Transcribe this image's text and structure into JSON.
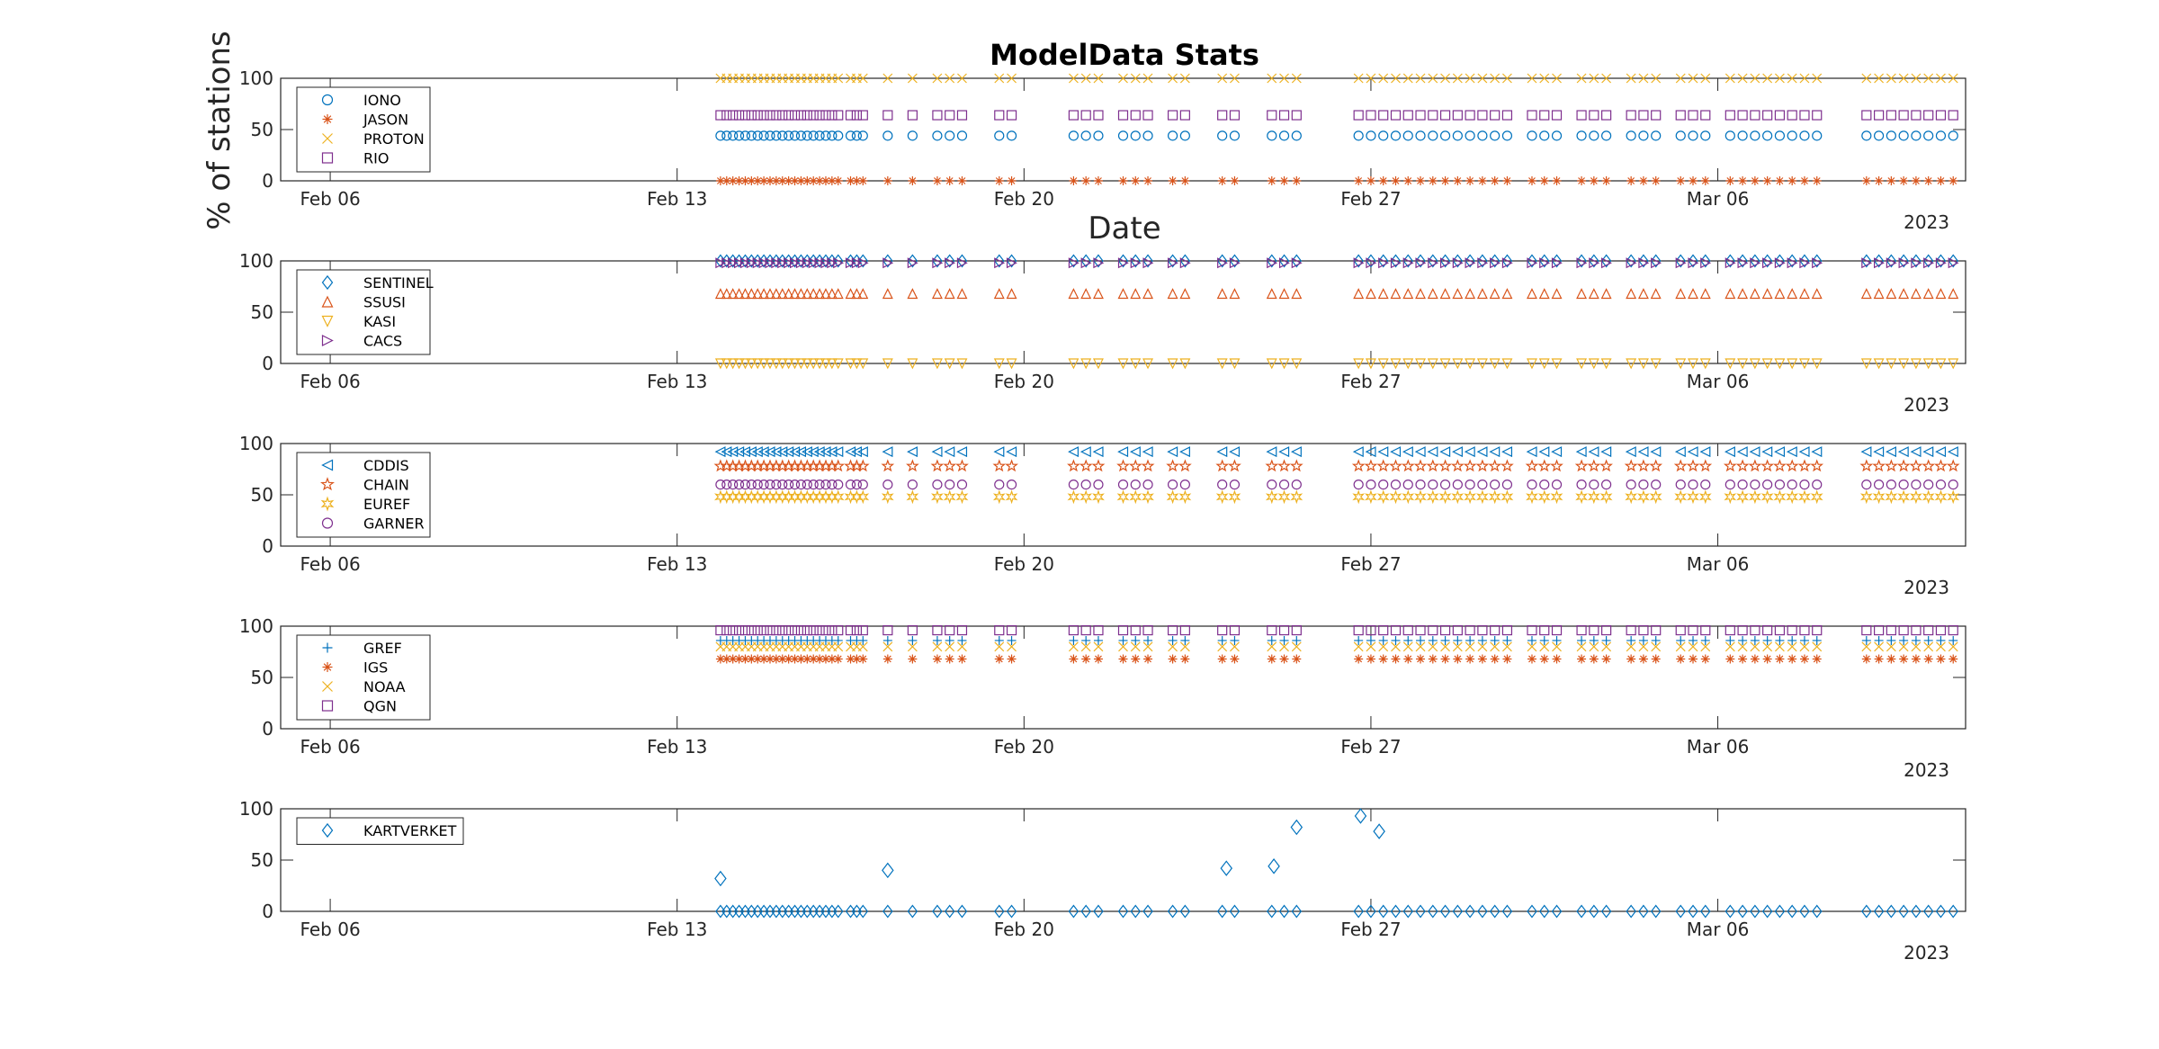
{
  "chart_data": [
    {
      "type": "scatter",
      "title": "ModelData Stats",
      "ylabel": "% of stations",
      "xlabel": "Date",
      "xlim": [
        "2023-02-05",
        "2023-03-11"
      ],
      "ylim": [
        0,
        100
      ],
      "yticks": [
        0,
        50,
        100
      ],
      "xticks": [
        {
          "date": "2023-02-06",
          "label": "Feb 06"
        },
        {
          "date": "2023-02-13",
          "label": "Feb 13"
        },
        {
          "date": "2023-02-20",
          "label": "Feb 20"
        },
        {
          "date": "2023-02-27",
          "label": "Feb 27"
        },
        {
          "date": "2023-03-06",
          "label": "Mar 06"
        }
      ],
      "year_label": "2023",
      "legend_position": "top-left",
      "series": [
        {
          "name": "IONO",
          "marker": "circle",
          "color": "#0072BD",
          "level": 44
        },
        {
          "name": "JASON",
          "marker": "asterisk",
          "color": "#D95319",
          "level": 0
        },
        {
          "name": "PROTON",
          "marker": "x",
          "color": "#EDB120",
          "level": 100
        },
        {
          "name": "RIO",
          "marker": "square",
          "color": "#7E2F8E",
          "level": 64
        }
      ]
    },
    {
      "type": "scatter",
      "xlim": [
        "2023-02-05",
        "2023-03-11"
      ],
      "ylim": [
        0,
        100
      ],
      "yticks": [
        0,
        50,
        100
      ],
      "xticks": [
        {
          "date": "2023-02-06",
          "label": "Feb 06"
        },
        {
          "date": "2023-02-13",
          "label": "Feb 13"
        },
        {
          "date": "2023-02-20",
          "label": "Feb 20"
        },
        {
          "date": "2023-02-27",
          "label": "Feb 27"
        },
        {
          "date": "2023-03-06",
          "label": "Mar 06"
        }
      ],
      "year_label": "2023",
      "legend_position": "top-left",
      "series": [
        {
          "name": "SENTINEL",
          "marker": "diamond",
          "color": "#0072BD",
          "level": 100
        },
        {
          "name": "SSUSI",
          "marker": "triangle-up",
          "color": "#D95319",
          "level": 68
        },
        {
          "name": "KASI",
          "marker": "triangle-down",
          "color": "#EDB120",
          "level": 0
        },
        {
          "name": "CACS",
          "marker": "triangle-right",
          "color": "#7E2F8E",
          "level": 98
        }
      ]
    },
    {
      "type": "scatter",
      "xlim": [
        "2023-02-05",
        "2023-03-11"
      ],
      "ylim": [
        0,
        100
      ],
      "yticks": [
        0,
        50,
        100
      ],
      "xticks": [
        {
          "date": "2023-02-06",
          "label": "Feb 06"
        },
        {
          "date": "2023-02-13",
          "label": "Feb 13"
        },
        {
          "date": "2023-02-20",
          "label": "Feb 20"
        },
        {
          "date": "2023-02-27",
          "label": "Feb 27"
        },
        {
          "date": "2023-03-06",
          "label": "Mar 06"
        }
      ],
      "year_label": "2023",
      "legend_position": "top-left",
      "series": [
        {
          "name": "CDDIS",
          "marker": "triangle-left",
          "color": "#0072BD",
          "level": 92
        },
        {
          "name": "CHAIN",
          "marker": "pentagram",
          "color": "#D95319",
          "level": 78
        },
        {
          "name": "EUREF",
          "marker": "hexagram",
          "color": "#EDB120",
          "level": 48
        },
        {
          "name": "GARNER",
          "marker": "circle",
          "color": "#7E2F8E",
          "level": 60
        }
      ]
    },
    {
      "type": "scatter",
      "xlim": [
        "2023-02-05",
        "2023-03-11"
      ],
      "ylim": [
        0,
        100
      ],
      "yticks": [
        0,
        50,
        100
      ],
      "xticks": [
        {
          "date": "2023-02-06",
          "label": "Feb 06"
        },
        {
          "date": "2023-02-13",
          "label": "Feb 13"
        },
        {
          "date": "2023-02-20",
          "label": "Feb 20"
        },
        {
          "date": "2023-02-27",
          "label": "Feb 27"
        },
        {
          "date": "2023-03-06",
          "label": "Mar 06"
        }
      ],
      "year_label": "2023",
      "legend_position": "top-left",
      "series": [
        {
          "name": "GREF",
          "marker": "plus",
          "color": "#0072BD",
          "level": 86
        },
        {
          "name": "IGS",
          "marker": "asterisk",
          "color": "#D95319",
          "level": 68
        },
        {
          "name": "NOAA",
          "marker": "x",
          "color": "#EDB120",
          "level": 80
        },
        {
          "name": "QGN",
          "marker": "square",
          "color": "#7E2F8E",
          "level": 96
        }
      ]
    },
    {
      "type": "scatter",
      "xlim": [
        "2023-02-05",
        "2023-03-11"
      ],
      "ylim": [
        0,
        100
      ],
      "yticks": [
        0,
        50,
        100
      ],
      "xticks": [
        {
          "date": "2023-02-06",
          "label": "Feb 06"
        },
        {
          "date": "2023-02-13",
          "label": "Feb 13"
        },
        {
          "date": "2023-02-20",
          "label": "Feb 20"
        },
        {
          "date": "2023-02-27",
          "label": "Feb 27"
        },
        {
          "date": "2023-03-06",
          "label": "Mar 06"
        }
      ],
      "year_label": "2023",
      "legend_position": "top-left",
      "series": [
        {
          "name": "KARTVERKET",
          "marker": "diamond",
          "color": "#0072BD",
          "level": 0,
          "extra_points": [
            [
              "2023-02-13 21:00",
              32
            ],
            [
              "2023-02-17 06:00",
              40
            ],
            [
              "2023-02-24 02:00",
              42
            ],
            [
              "2023-02-25 01:00",
              44
            ],
            [
              "2023-02-25 12:00",
              82
            ],
            [
              "2023-02-26 19:00",
              93
            ],
            [
              "2023-02-27 04:00",
              78
            ]
          ]
        }
      ]
    }
  ],
  "active_dates": [
    "2023-02-13 21:00",
    "2023-02-14 00:00",
    "2023-02-14 03:00",
    "2023-02-14 06:00",
    "2023-02-14 09:00",
    "2023-02-14 12:00",
    "2023-02-14 15:00",
    "2023-02-14 18:00",
    "2023-02-14 21:00",
    "2023-02-15 00:00",
    "2023-02-15 03:00",
    "2023-02-15 06:00",
    "2023-02-15 09:00",
    "2023-02-15 12:00",
    "2023-02-15 15:00",
    "2023-02-15 18:00",
    "2023-02-15 21:00",
    "2023-02-16 00:00",
    "2023-02-16 03:00",
    "2023-02-16 06:00",
    "2023-02-16 12:00",
    "2023-02-16 15:00",
    "2023-02-16 18:00",
    "2023-02-17 06:00",
    "2023-02-17 18:00",
    "2023-02-18 06:00",
    "2023-02-18 12:00",
    "2023-02-18 18:00",
    "2023-02-19 12:00",
    "2023-02-19 18:00",
    "2023-02-21 00:00",
    "2023-02-21 06:00",
    "2023-02-21 12:00",
    "2023-02-22 00:00",
    "2023-02-22 06:00",
    "2023-02-22 12:00",
    "2023-02-23 00:00",
    "2023-02-23 06:00",
    "2023-02-24 00:00",
    "2023-02-24 06:00",
    "2023-02-25 00:00",
    "2023-02-25 06:00",
    "2023-02-25 12:00",
    "2023-02-26 18:00",
    "2023-02-27 00:00",
    "2023-02-27 06:00",
    "2023-02-27 12:00",
    "2023-02-27 18:00",
    "2023-02-28 00:00",
    "2023-02-28 06:00",
    "2023-02-28 12:00",
    "2023-02-28 18:00",
    "2023-03-01 00:00",
    "2023-03-01 06:00",
    "2023-03-01 12:00",
    "2023-03-01 18:00",
    "2023-03-02 06:00",
    "2023-03-02 12:00",
    "2023-03-02 18:00",
    "2023-03-03 06:00",
    "2023-03-03 12:00",
    "2023-03-03 18:00",
    "2023-03-04 06:00",
    "2023-03-04 12:00",
    "2023-03-04 18:00",
    "2023-03-05 06:00",
    "2023-03-05 12:00",
    "2023-03-05 18:00",
    "2023-03-06 06:00",
    "2023-03-06 12:00",
    "2023-03-06 18:00",
    "2023-03-07 00:00",
    "2023-03-07 06:00",
    "2023-03-07 12:00",
    "2023-03-07 18:00",
    "2023-03-08 00:00",
    "2023-03-09 00:00",
    "2023-03-09 06:00",
    "2023-03-09 12:00",
    "2023-03-09 18:00",
    "2023-03-10 00:00",
    "2023-03-10 06:00",
    "2023-03-10 12:00",
    "2023-03-10 18:00"
  ]
}
